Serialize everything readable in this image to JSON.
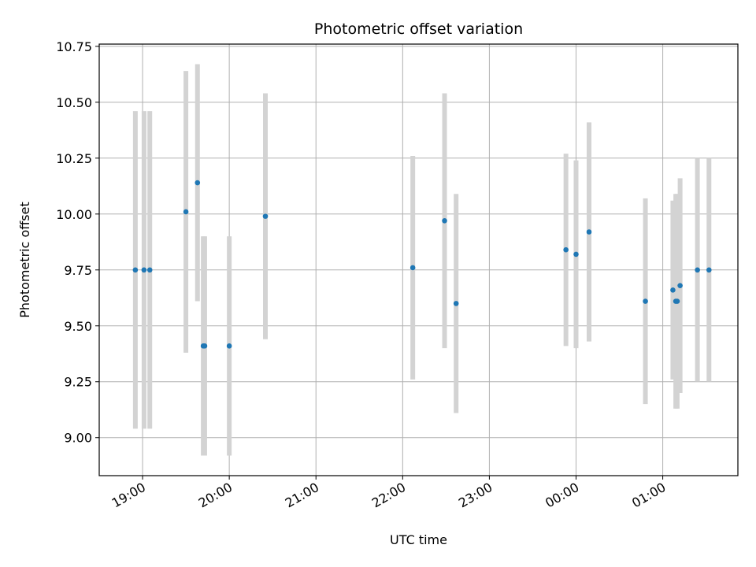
{
  "chart_data": {
    "type": "scatter",
    "title": "Photometric offset variation",
    "xlabel": "UTC time",
    "ylabel": "Photometric offset",
    "grid": true,
    "x_unit": "hours UTC (from 19:00, wrapping past midnight)",
    "xlim": [
      "18:30",
      "01:52"
    ],
    "ylim": [
      8.83,
      10.76
    ],
    "x_ticks": [
      "19:00",
      "20:00",
      "21:00",
      "22:00",
      "23:00",
      "00:00",
      "01:00"
    ],
    "y_ticks": [
      "9.00",
      "9.25",
      "9.50",
      "9.75",
      "10.00",
      "10.25",
      "10.50",
      "10.75"
    ],
    "marker_color": "#1f77b4",
    "errorbar_color": "#d3d3d3",
    "points": [
      {
        "t": "18:55",
        "y": 9.75,
        "err": 0.71
      },
      {
        "t": "19:01",
        "y": 9.75,
        "err": 0.71
      },
      {
        "t": "19:05",
        "y": 9.75,
        "err": 0.71
      },
      {
        "t": "19:30",
        "y": 10.01,
        "err": 0.63
      },
      {
        "t": "19:38",
        "y": 10.14,
        "err": 0.53
      },
      {
        "t": "19:42",
        "y": 9.41,
        "err": 0.49
      },
      {
        "t": "19:43",
        "y": 9.41,
        "err": 0.49
      },
      {
        "t": "20:00",
        "y": 9.41,
        "err": 0.49
      },
      {
        "t": "20:25",
        "y": 9.99,
        "err": 0.55
      },
      {
        "t": "22:07",
        "y": 9.76,
        "err": 0.5
      },
      {
        "t": "22:29",
        "y": 9.97,
        "err": 0.57
      },
      {
        "t": "22:37",
        "y": 9.6,
        "err": 0.49
      },
      {
        "t": "23:53",
        "y": 9.84,
        "err": 0.43
      },
      {
        "t": "00:00",
        "y": 9.82,
        "err": 0.42
      },
      {
        "t": "00:09",
        "y": 9.92,
        "err": 0.49
      },
      {
        "t": "00:48",
        "y": 9.61,
        "err": 0.46
      },
      {
        "t": "01:07",
        "y": 9.66,
        "err": 0.4
      },
      {
        "t": "01:09",
        "y": 9.61,
        "err": 0.48
      },
      {
        "t": "01:10",
        "y": 9.61,
        "err": 0.48
      },
      {
        "t": "01:12",
        "y": 9.68,
        "err": 0.48
      },
      {
        "t": "01:24",
        "y": 9.75,
        "err": 0.5
      },
      {
        "t": "01:32",
        "y": 9.75,
        "err": 0.5
      }
    ]
  }
}
